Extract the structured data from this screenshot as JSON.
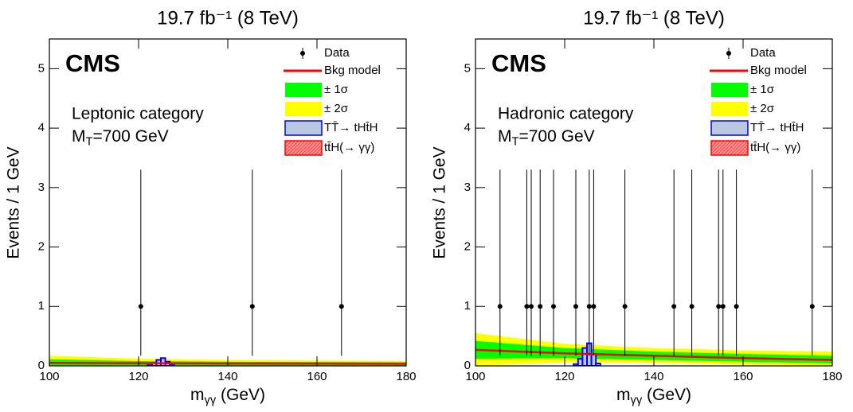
{
  "chart_data": [
    {
      "type": "fit",
      "title": "19.7 fb⁻¹ (8 TeV)",
      "experiment": "CMS",
      "category": "Leptonic category",
      "mass_label": {
        "main": "M",
        "sub": "T",
        "tail": "=700 GeV"
      },
      "ylabel": "Events / 1 GeV",
      "xlabel": {
        "main": "m",
        "sub": "γγ",
        "tail": " (GeV)"
      },
      "xlim": [
        100,
        180
      ],
      "xticks": [
        100,
        120,
        140,
        160,
        180
      ],
      "ylim": [
        0,
        5.5
      ],
      "yticks": [
        0,
        1,
        2,
        3,
        4,
        5
      ],
      "series": [
        {
          "name": "Data",
          "kind": "points",
          "color": "#000000",
          "x": [
            120.5,
            145.5,
            165.5
          ],
          "values": [
            1,
            1,
            1
          ],
          "err_low": [
            0.83,
            0.83,
            0.83
          ],
          "err_high": [
            2.3,
            2.3,
            2.3
          ]
        },
        {
          "name": "Bkg model",
          "kind": "line",
          "color": "#ff0000",
          "x": [
            100,
            120,
            140,
            160,
            180
          ],
          "values": [
            0.05,
            0.045,
            0.04,
            0.038,
            0.035
          ]
        },
        {
          "name": "± 1σ",
          "kind": "band",
          "color": "#00ff00",
          "x": [
            100,
            120,
            140,
            160,
            180
          ],
          "low": [
            0.0,
            0.0,
            0.0,
            0.0,
            0.0
          ],
          "high": [
            0.11,
            0.08,
            0.07,
            0.065,
            0.06
          ]
        },
        {
          "name": "± 2σ",
          "kind": "band",
          "color": "#ffff00",
          "x": [
            100,
            120,
            140,
            160,
            180
          ],
          "low": [
            0.0,
            0.0,
            0.0,
            0.0,
            0.0
          ],
          "high": [
            0.17,
            0.12,
            0.1,
            0.09,
            0.08
          ]
        },
        {
          "name": "TT̄→ tHt̄H",
          "kind": "hist",
          "color": "#b8c8e0",
          "edge": "#0000ff",
          "bins": [
            122,
            123,
            124,
            125,
            126,
            127,
            128
          ],
          "values": [
            0.01,
            0.05,
            0.1,
            0.13,
            0.07,
            0.01
          ]
        },
        {
          "name": "tt̄H(→ γγ)",
          "kind": "hist",
          "color": "#ff8080",
          "edge": "#ff0000",
          "bins": [
            123,
            124,
            125,
            126,
            127
          ],
          "values": [
            0.003,
            0.008,
            0.008,
            0.003
          ]
        }
      ]
    },
    {
      "type": "fit",
      "title": "19.7 fb⁻¹ (8 TeV)",
      "experiment": "CMS",
      "category": "Hadronic category",
      "mass_label": {
        "main": "M",
        "sub": "T",
        "tail": "=700 GeV"
      },
      "ylabel": "Events / 1 GeV",
      "xlabel": {
        "main": "m",
        "sub": "γγ",
        "tail": " (GeV)"
      },
      "xlim": [
        100,
        180
      ],
      "xticks": [
        100,
        120,
        140,
        160,
        180
      ],
      "ylim": [
        0,
        5.5
      ],
      "yticks": [
        0,
        1,
        2,
        3,
        4,
        5
      ],
      "series": [
        {
          "name": "Data",
          "kind": "points",
          "color": "#000000",
          "x": [
            105.5,
            111.5,
            112.5,
            114.5,
            117.5,
            122.5,
            125.5,
            126.5,
            133.5,
            144.5,
            148.5,
            154.5,
            155.5,
            158.5,
            175.5
          ],
          "values": [
            1,
            1,
            1,
            1,
            1,
            1,
            1,
            1,
            1,
            1,
            1,
            1,
            1,
            1,
            1
          ],
          "err_low": [
            0.83,
            0.83,
            0.83,
            0.83,
            0.83,
            0.83,
            0.83,
            0.83,
            0.83,
            0.83,
            0.83,
            0.83,
            0.83,
            0.83,
            0.83
          ],
          "err_high": [
            2.3,
            2.3,
            2.3,
            2.3,
            2.3,
            2.3,
            2.3,
            2.3,
            2.3,
            2.3,
            2.3,
            2.3,
            2.3,
            2.3,
            2.3
          ]
        },
        {
          "name": "Bkg model",
          "kind": "line",
          "color": "#ff0000",
          "x": [
            100,
            120,
            140,
            160,
            180
          ],
          "values": [
            0.27,
            0.21,
            0.17,
            0.13,
            0.1
          ]
        },
        {
          "name": "± 1σ",
          "kind": "band",
          "color": "#00ff00",
          "x": [
            100,
            120,
            140,
            160,
            180
          ],
          "low": [
            0.12,
            0.13,
            0.1,
            0.07,
            0.04
          ],
          "high": [
            0.42,
            0.3,
            0.24,
            0.2,
            0.17
          ]
        },
        {
          "name": "± 2σ",
          "kind": "band",
          "color": "#ffff00",
          "x": [
            100,
            120,
            140,
            160,
            180
          ],
          "low": [
            0.0,
            0.06,
            0.05,
            0.02,
            0.0
          ],
          "high": [
            0.55,
            0.37,
            0.3,
            0.26,
            0.24
          ]
        },
        {
          "name": "TT̄→ tHt̄H",
          "kind": "hist",
          "color": "#b8c8e0",
          "edge": "#0000ff",
          "bins": [
            122,
            123,
            124,
            125,
            126,
            127,
            128
          ],
          "values": [
            0.03,
            0.12,
            0.3,
            0.38,
            0.2,
            0.04
          ]
        },
        {
          "name": "tt̄H(→ γγ)",
          "kind": "hist",
          "color": "#ff8080",
          "edge": "#ff0000",
          "bins": [
            123,
            124,
            125,
            126,
            127
          ],
          "values": [
            0.005,
            0.01,
            0.01,
            0.005
          ]
        }
      ]
    }
  ]
}
